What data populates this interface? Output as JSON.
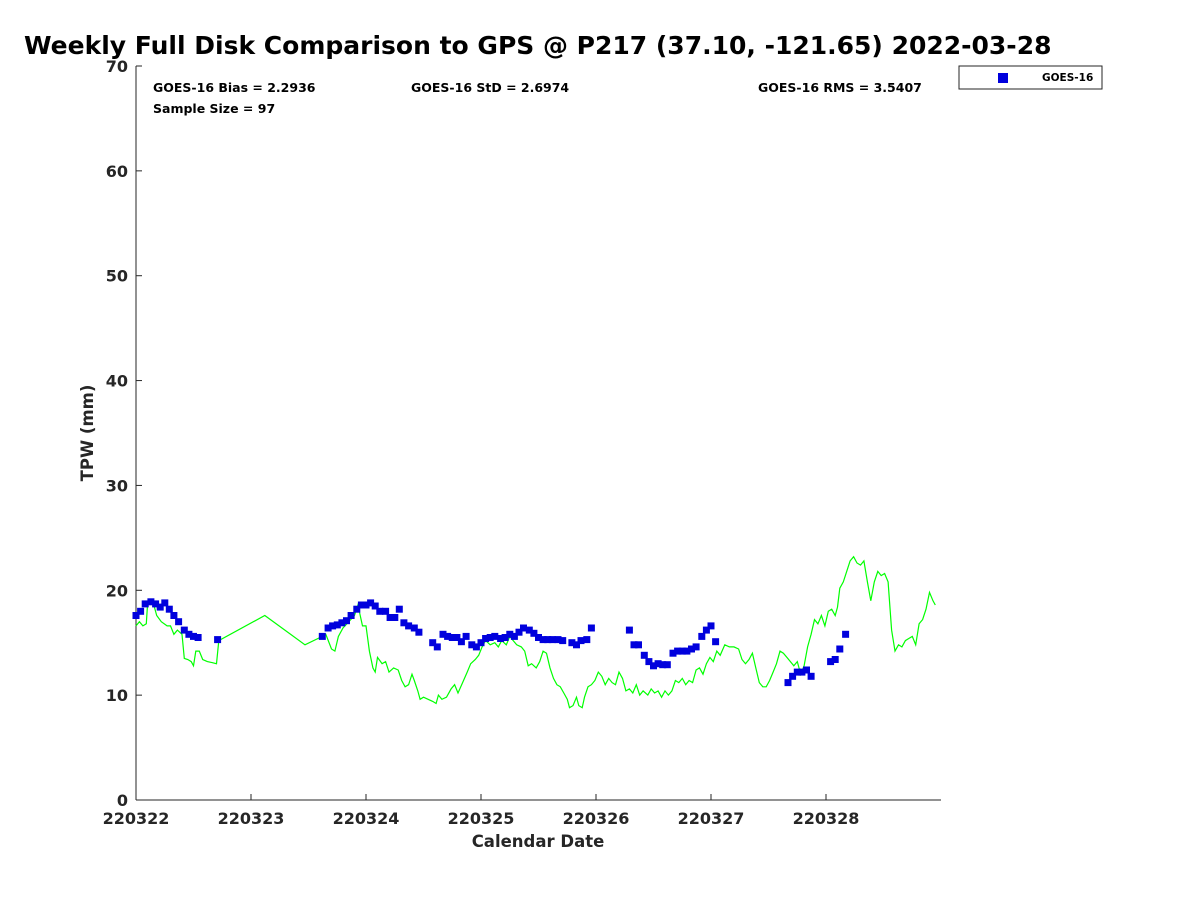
{
  "chart_data": {
    "type": "scatter",
    "title": "Weekly Full Disk Comparison to GPS @ P217 (37.10, -121.65) 2022-03-28",
    "xlabel": "Calendar Date",
    "ylabel": "TPW (mm)",
    "xlim": [
      0,
      7
    ],
    "ylim": [
      0,
      70
    ],
    "y_ticks": [
      0,
      10,
      20,
      30,
      40,
      50,
      60,
      70
    ],
    "x_ticks": [
      {
        "value": 0,
        "label": "220322"
      },
      {
        "value": 1,
        "label": "220323"
      },
      {
        "value": 2,
        "label": "220324"
      },
      {
        "value": 3,
        "label": "220325"
      },
      {
        "value": 4,
        "label": "220326"
      },
      {
        "value": 5,
        "label": "220327"
      },
      {
        "value": 6,
        "label": "220328"
      }
    ],
    "grid": false,
    "legend_position": "top-right",
    "stats": {
      "bias": "GOES-16 Bias = 2.2936",
      "std": "GOES-16 StD = 2.6974",
      "rms": "GOES-16 RMS = 3.5407",
      "sample": "Sample Size = 97"
    },
    "series": [
      {
        "name": "GOES-16",
        "marker": "square",
        "color": "#0000dd",
        "points": [
          [
            0.0,
            17.6
          ],
          [
            0.04,
            18.0
          ],
          [
            0.08,
            18.7
          ],
          [
            0.13,
            18.9
          ],
          [
            0.17,
            18.7
          ],
          [
            0.21,
            18.4
          ],
          [
            0.25,
            18.8
          ],
          [
            0.29,
            18.2
          ],
          [
            0.33,
            17.6
          ],
          [
            0.37,
            17.0
          ],
          [
            0.42,
            16.2
          ],
          [
            0.46,
            15.8
          ],
          [
            0.5,
            15.6
          ],
          [
            0.54,
            15.5
          ],
          [
            0.71,
            15.3
          ],
          [
            1.62,
            15.6
          ],
          [
            1.67,
            16.4
          ],
          [
            1.71,
            16.6
          ],
          [
            1.75,
            16.7
          ],
          [
            1.79,
            16.9
          ],
          [
            1.83,
            17.1
          ],
          [
            1.87,
            17.6
          ],
          [
            1.92,
            18.2
          ],
          [
            1.96,
            18.6
          ],
          [
            2.0,
            18.6
          ],
          [
            2.04,
            18.8
          ],
          [
            2.08,
            18.5
          ],
          [
            2.12,
            18.0
          ],
          [
            2.17,
            18.0
          ],
          [
            2.21,
            17.4
          ],
          [
            2.25,
            17.4
          ],
          [
            2.29,
            18.2
          ],
          [
            2.33,
            16.9
          ],
          [
            2.37,
            16.6
          ],
          [
            2.42,
            16.4
          ],
          [
            2.46,
            16.0
          ],
          [
            2.58,
            15.0
          ],
          [
            2.62,
            14.6
          ],
          [
            2.67,
            15.8
          ],
          [
            2.71,
            15.6
          ],
          [
            2.75,
            15.5
          ],
          [
            2.79,
            15.5
          ],
          [
            2.83,
            15.1
          ],
          [
            2.87,
            15.6
          ],
          [
            2.92,
            14.8
          ],
          [
            2.96,
            14.6
          ],
          [
            3.0,
            15.0
          ],
          [
            3.04,
            15.4
          ],
          [
            3.08,
            15.5
          ],
          [
            3.12,
            15.6
          ],
          [
            3.17,
            15.4
          ],
          [
            3.21,
            15.5
          ],
          [
            3.25,
            15.8
          ],
          [
            3.29,
            15.6
          ],
          [
            3.33,
            16.0
          ],
          [
            3.37,
            16.4
          ],
          [
            3.42,
            16.2
          ],
          [
            3.46,
            15.9
          ],
          [
            3.5,
            15.5
          ],
          [
            3.54,
            15.3
          ],
          [
            3.58,
            15.3
          ],
          [
            3.62,
            15.3
          ],
          [
            3.67,
            15.3
          ],
          [
            3.71,
            15.2
          ],
          [
            3.79,
            15.0
          ],
          [
            3.83,
            14.8
          ],
          [
            3.87,
            15.2
          ],
          [
            3.92,
            15.3
          ],
          [
            3.96,
            16.4
          ],
          [
            4.29,
            16.2
          ],
          [
            4.33,
            14.8
          ],
          [
            4.37,
            14.8
          ],
          [
            4.42,
            13.8
          ],
          [
            4.46,
            13.2
          ],
          [
            4.5,
            12.8
          ],
          [
            4.54,
            13.0
          ],
          [
            4.58,
            12.9
          ],
          [
            4.62,
            12.9
          ],
          [
            4.67,
            14.0
          ],
          [
            4.71,
            14.2
          ],
          [
            4.75,
            14.2
          ],
          [
            4.79,
            14.2
          ],
          [
            4.83,
            14.4
          ],
          [
            4.87,
            14.6
          ],
          [
            4.92,
            15.6
          ],
          [
            4.96,
            16.2
          ],
          [
            5.0,
            16.6
          ],
          [
            5.04,
            15.1
          ],
          [
            5.67,
            11.2
          ],
          [
            5.71,
            11.8
          ],
          [
            5.75,
            12.2
          ],
          [
            5.79,
            12.2
          ],
          [
            5.83,
            12.4
          ],
          [
            5.87,
            11.8
          ],
          [
            6.04,
            13.2
          ],
          [
            6.08,
            13.4
          ],
          [
            6.12,
            14.4
          ],
          [
            6.17,
            15.8
          ]
        ]
      },
      {
        "name": "",
        "style": "line",
        "color": "#00ff00",
        "points": [
          [
            0.0,
            16.6
          ],
          [
            0.03,
            17.0
          ],
          [
            0.06,
            16.6
          ],
          [
            0.09,
            16.8
          ],
          [
            0.1,
            18.6
          ],
          [
            0.13,
            18.9
          ],
          [
            0.16,
            18.4
          ],
          [
            0.18,
            17.6
          ],
          [
            0.22,
            17.0
          ],
          [
            0.27,
            16.6
          ],
          [
            0.3,
            16.6
          ],
          [
            0.33,
            15.8
          ],
          [
            0.36,
            16.2
          ],
          [
            0.4,
            15.8
          ],
          [
            0.42,
            13.5
          ],
          [
            0.45,
            13.4
          ],
          [
            0.48,
            13.2
          ],
          [
            0.5,
            12.8
          ],
          [
            0.52,
            14.2
          ],
          [
            0.55,
            14.2
          ],
          [
            0.58,
            13.4
          ],
          [
            0.62,
            13.2
          ],
          [
            0.66,
            13.1
          ],
          [
            0.7,
            13.0
          ],
          [
            0.72,
            15.2
          ],
          [
            1.12,
            17.6
          ],
          [
            1.47,
            14.8
          ],
          [
            1.6,
            15.5
          ],
          [
            1.65,
            15.8
          ],
          [
            1.7,
            14.4
          ],
          [
            1.73,
            14.2
          ],
          [
            1.76,
            15.6
          ],
          [
            1.8,
            16.4
          ],
          [
            1.85,
            17.0
          ],
          [
            1.9,
            17.6
          ],
          [
            1.93,
            18.6
          ],
          [
            1.97,
            16.6
          ],
          [
            2.0,
            16.6
          ],
          [
            2.03,
            14.2
          ],
          [
            2.06,
            12.6
          ],
          [
            2.08,
            12.2
          ],
          [
            2.1,
            13.6
          ],
          [
            2.14,
            13.0
          ],
          [
            2.17,
            13.2
          ],
          [
            2.2,
            12.2
          ],
          [
            2.24,
            12.6
          ],
          [
            2.28,
            12.4
          ],
          [
            2.31,
            11.4
          ],
          [
            2.34,
            10.8
          ],
          [
            2.37,
            11.0
          ],
          [
            2.4,
            12.0
          ],
          [
            2.42,
            11.4
          ],
          [
            2.45,
            10.4
          ],
          [
            2.47,
            9.6
          ],
          [
            2.5,
            9.8
          ],
          [
            2.54,
            9.6
          ],
          [
            2.58,
            9.4
          ],
          [
            2.61,
            9.2
          ],
          [
            2.63,
            10.0
          ],
          [
            2.66,
            9.6
          ],
          [
            2.7,
            9.8
          ],
          [
            2.74,
            10.6
          ],
          [
            2.77,
            11.0
          ],
          [
            2.8,
            10.2
          ],
          [
            2.84,
            11.2
          ],
          [
            2.88,
            12.2
          ],
          [
            2.91,
            13.0
          ],
          [
            2.95,
            13.4
          ],
          [
            2.98,
            13.8
          ],
          [
            3.01,
            14.6
          ],
          [
            3.04,
            15.2
          ],
          [
            3.08,
            14.8
          ],
          [
            3.12,
            15.0
          ],
          [
            3.15,
            14.6
          ],
          [
            3.18,
            15.2
          ],
          [
            3.22,
            14.8
          ],
          [
            3.25,
            15.6
          ],
          [
            3.28,
            15.2
          ],
          [
            3.31,
            14.8
          ],
          [
            3.35,
            14.6
          ],
          [
            3.38,
            14.2
          ],
          [
            3.41,
            12.8
          ],
          [
            3.44,
            13.0
          ],
          [
            3.48,
            12.6
          ],
          [
            3.51,
            13.2
          ],
          [
            3.54,
            14.2
          ],
          [
            3.57,
            14.0
          ],
          [
            3.6,
            12.6
          ],
          [
            3.63,
            11.6
          ],
          [
            3.66,
            11.0
          ],
          [
            3.69,
            10.8
          ],
          [
            3.72,
            10.2
          ],
          [
            3.75,
            9.6
          ],
          [
            3.77,
            8.8
          ],
          [
            3.8,
            9.0
          ],
          [
            3.83,
            9.8
          ],
          [
            3.85,
            9.0
          ],
          [
            3.88,
            8.8
          ],
          [
            3.9,
            9.8
          ],
          [
            3.93,
            10.8
          ],
          [
            3.96,
            11.0
          ],
          [
            3.99,
            11.4
          ],
          [
            4.02,
            12.2
          ],
          [
            4.05,
            11.8
          ],
          [
            4.08,
            11.0
          ],
          [
            4.11,
            11.6
          ],
          [
            4.14,
            11.2
          ],
          [
            4.17,
            11.0
          ],
          [
            4.2,
            12.2
          ],
          [
            4.23,
            11.6
          ],
          [
            4.26,
            10.4
          ],
          [
            4.29,
            10.6
          ],
          [
            4.32,
            10.2
          ],
          [
            4.35,
            11.0
          ],
          [
            4.38,
            10.0
          ],
          [
            4.41,
            10.4
          ],
          [
            4.45,
            10.0
          ],
          [
            4.48,
            10.6
          ],
          [
            4.51,
            10.2
          ],
          [
            4.54,
            10.4
          ],
          [
            4.57,
            9.8
          ],
          [
            4.6,
            10.4
          ],
          [
            4.63,
            10.0
          ],
          [
            4.66,
            10.4
          ],
          [
            4.69,
            11.4
          ],
          [
            4.72,
            11.2
          ],
          [
            4.75,
            11.6
          ],
          [
            4.78,
            11.0
          ],
          [
            4.81,
            11.4
          ],
          [
            4.84,
            11.2
          ],
          [
            4.87,
            12.4
          ],
          [
            4.9,
            12.6
          ],
          [
            4.93,
            12.0
          ],
          [
            4.96,
            13.0
          ],
          [
            4.99,
            13.6
          ],
          [
            5.02,
            13.2
          ],
          [
            5.05,
            14.2
          ],
          [
            5.08,
            13.8
          ],
          [
            5.12,
            14.8
          ],
          [
            5.16,
            14.6
          ],
          [
            5.2,
            14.6
          ],
          [
            5.24,
            14.4
          ],
          [
            5.27,
            13.4
          ],
          [
            5.3,
            13.0
          ],
          [
            5.33,
            13.4
          ],
          [
            5.36,
            14.0
          ],
          [
            5.39,
            12.6
          ],
          [
            5.42,
            11.2
          ],
          [
            5.45,
            10.8
          ],
          [
            5.48,
            10.8
          ],
          [
            5.51,
            11.4
          ],
          [
            5.54,
            12.2
          ],
          [
            5.57,
            13.0
          ],
          [
            5.6,
            14.2
          ],
          [
            5.63,
            14.0
          ],
          [
            5.66,
            13.6
          ],
          [
            5.69,
            13.2
          ],
          [
            5.72,
            12.8
          ],
          [
            5.75,
            13.2
          ],
          [
            5.78,
            12.0
          ],
          [
            5.81,
            12.8
          ],
          [
            5.84,
            14.6
          ],
          [
            5.87,
            15.8
          ],
          [
            5.9,
            17.2
          ],
          [
            5.93,
            16.8
          ],
          [
            5.96,
            17.6
          ],
          [
            5.99,
            16.6
          ],
          [
            6.02,
            18.0
          ],
          [
            6.05,
            18.2
          ],
          [
            6.08,
            17.6
          ],
          [
            6.1,
            18.4
          ],
          [
            6.12,
            20.2
          ],
          [
            6.15,
            20.8
          ],
          [
            6.18,
            21.8
          ],
          [
            6.21,
            22.8
          ],
          [
            6.24,
            23.2
          ],
          [
            6.27,
            22.6
          ],
          [
            6.3,
            22.4
          ],
          [
            6.33,
            22.8
          ],
          [
            6.36,
            20.8
          ],
          [
            6.39,
            19.0
          ],
          [
            6.42,
            20.8
          ],
          [
            6.45,
            21.8
          ],
          [
            6.48,
            21.4
          ],
          [
            6.51,
            21.6
          ],
          [
            6.54,
            20.8
          ],
          [
            6.57,
            16.2
          ],
          [
            6.6,
            14.2
          ],
          [
            6.63,
            14.8
          ],
          [
            6.66,
            14.6
          ],
          [
            6.69,
            15.2
          ],
          [
            6.72,
            15.4
          ],
          [
            6.75,
            15.6
          ],
          [
            6.78,
            14.8
          ],
          [
            6.81,
            16.8
          ],
          [
            6.84,
            17.2
          ],
          [
            6.87,
            18.2
          ],
          [
            6.9,
            19.8
          ],
          [
            6.93,
            19.0
          ],
          [
            6.95,
            18.6
          ]
        ]
      }
    ]
  }
}
